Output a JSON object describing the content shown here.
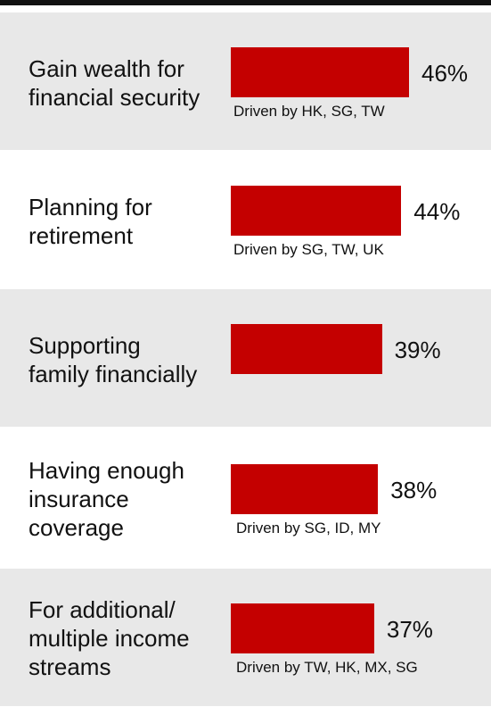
{
  "chart_data": {
    "type": "bar",
    "orientation": "horizontal",
    "bar_color": "#c40000",
    "row_colors": [
      "#e8e8e8",
      "#ffffff"
    ],
    "unit": "%",
    "categories": [
      "Gain wealth for financial security",
      "Planning for retirement",
      "Supporting family financially",
      "Having enough insurance coverage",
      "For additional/ multiple income streams"
    ],
    "values": [
      46,
      44,
      39,
      38,
      37
    ],
    "items": [
      {
        "label_lines": [
          "Gain wealth for",
          "financial security"
        ],
        "value": 46,
        "value_label": "46%",
        "note": "Driven by HK, SG, TW"
      },
      {
        "label_lines": [
          "Planning for",
          "retirement"
        ],
        "value": 44,
        "value_label": "44%",
        "note": "Driven by SG, TW, UK"
      },
      {
        "label_lines": [
          "Supporting",
          "family financially"
        ],
        "value": 39,
        "value_label": "39%",
        "note": ""
      },
      {
        "label_lines": [
          "Having enough",
          "insurance",
          "coverage"
        ],
        "value": 38,
        "value_label": "38%",
        "note": "Driven by SG, ID, MY"
      },
      {
        "label_lines": [
          "For additional/",
          "multiple income",
          "streams"
        ],
        "value": 37,
        "value_label": "37%",
        "note": "Driven by TW, HK, MX, SG"
      }
    ]
  }
}
